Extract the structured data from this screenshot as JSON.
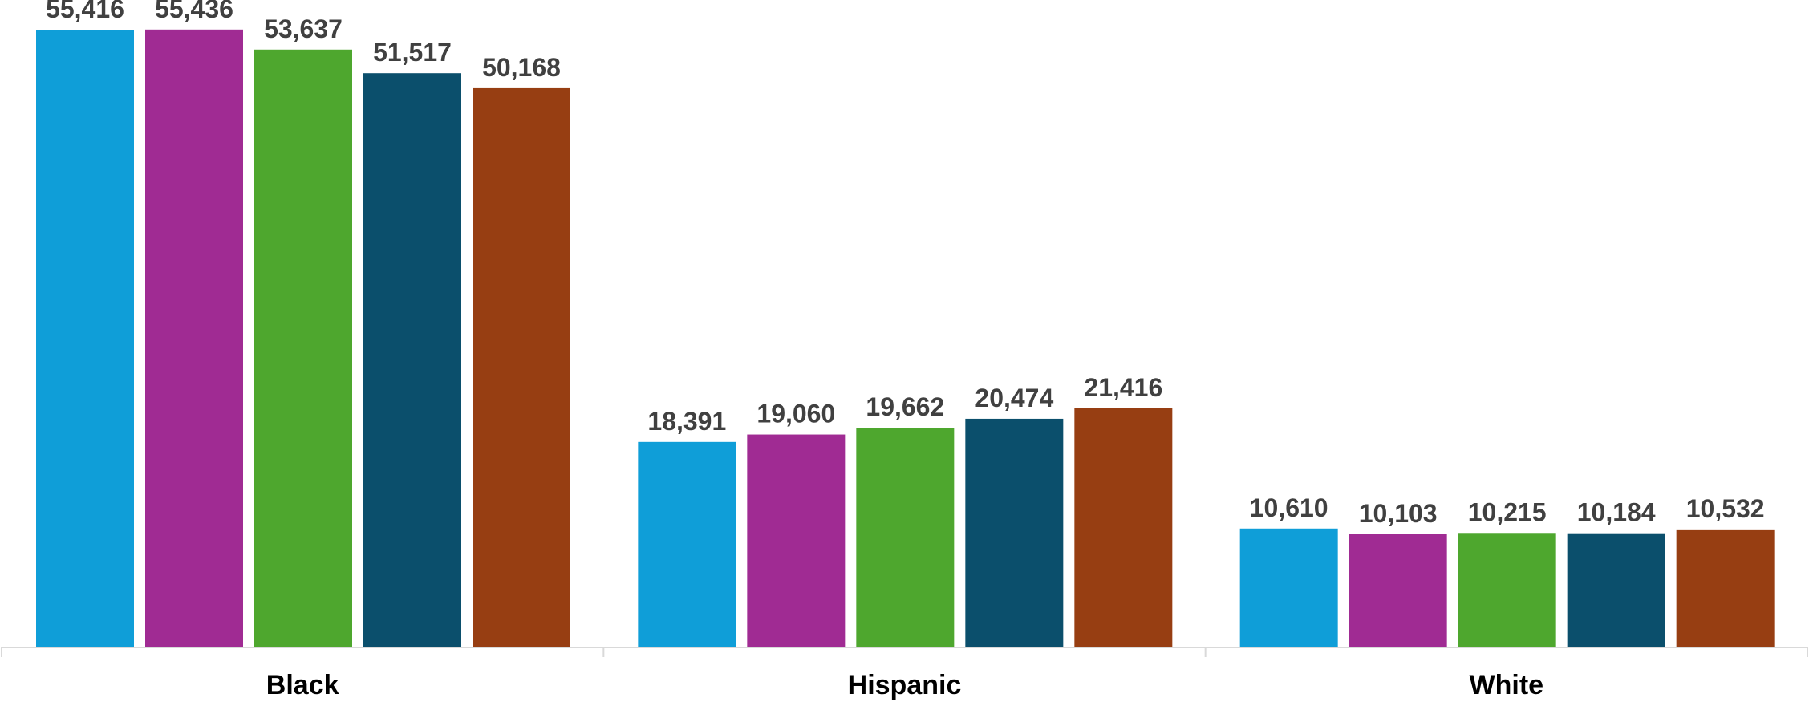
{
  "chart_data": {
    "type": "bar",
    "categories": [
      "Black",
      "Hispanic",
      "White"
    ],
    "series": [
      {
        "values": [
          55416,
          18391,
          10610
        ]
      },
      {
        "values": [
          55436,
          19060,
          10103
        ]
      },
      {
        "values": [
          53637,
          19662,
          10215
        ]
      },
      {
        "values": [
          51517,
          20474,
          10184
        ]
      },
      {
        "values": [
          50168,
          21416,
          10532
        ]
      }
    ],
    "series_colors": [
      "#0f9ed8",
      "#a02b93",
      "#4ea72e",
      "#0b4f6c",
      "#973e12"
    ],
    "data_labels": [
      [
        "55,416",
        "18,391",
        "10,610"
      ],
      [
        "55,436",
        "19,060",
        "10,103"
      ],
      [
        "53,637",
        "19,662",
        "10,215"
      ],
      [
        "51,517",
        "20,474",
        "10,184"
      ],
      [
        "50,168",
        "21,416",
        "10,532"
      ]
    ],
    "ylim": [
      0,
      56000
    ],
    "grid": false,
    "legend": "none",
    "title": "",
    "xlabel": "",
    "ylabel": ""
  }
}
